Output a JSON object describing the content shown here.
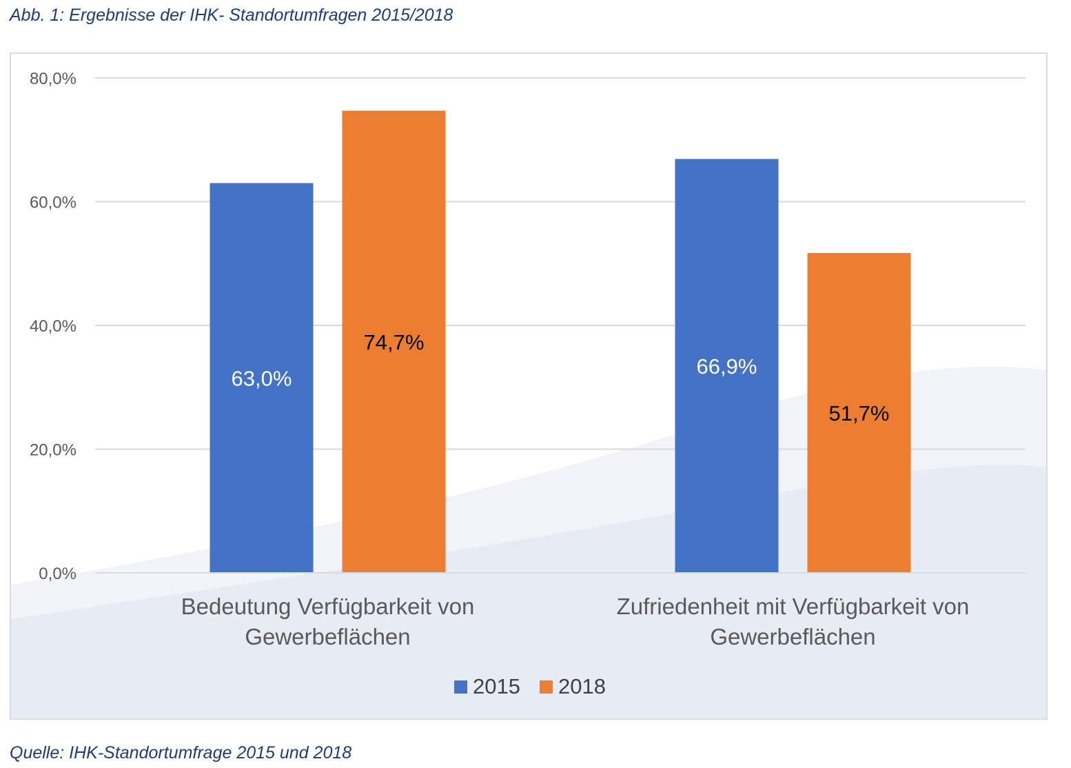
{
  "figure": {
    "caption": "Abb. 1: Ergebnisse der IHK- Standortumfragen 2015/2018",
    "source": "Quelle: IHK-Standortumfrage 2015 und 2018"
  },
  "chart_data": {
    "type": "bar",
    "categories": [
      [
        "Bedeutung Verfügbarkeit von",
        "Gewerbeflächen"
      ],
      [
        "Zufriedenheit mit Verfügbarkeit von",
        "Gewerbeflächen"
      ]
    ],
    "series": [
      {
        "name": "2015",
        "color": "#4472c4",
        "values": [
          63.0,
          66.9
        ],
        "labels": [
          "63,0%",
          "66,9%"
        ],
        "label_color": "#ffffff"
      },
      {
        "name": "2018",
        "color": "#ed7d31",
        "values": [
          74.7,
          51.7
        ],
        "labels": [
          "74,7%",
          "51,7%"
        ],
        "label_color": "#000000"
      }
    ],
    "ylim": [
      0,
      80
    ],
    "yticks": [
      "0,0%",
      "20,0%",
      "40,0%",
      "60,0%",
      "80,0%"
    ],
    "grid": true,
    "legend_position": "bottom"
  }
}
